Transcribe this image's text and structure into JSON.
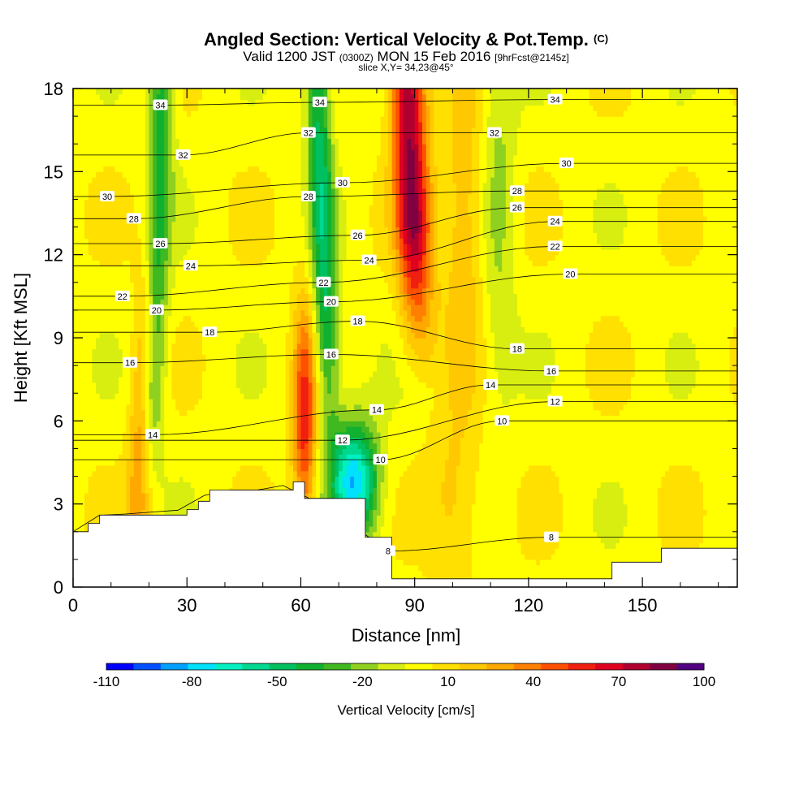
{
  "header": {
    "title_main": "Angled Section: Vertical Velocity & Pot.Temp.",
    "title_unit": "(C)",
    "valid_prefix": "Valid 1200 JST",
    "valid_utc": "(0300Z)",
    "valid_date": "MON 15 Feb 2016",
    "valid_fcst": "[9hrFcst@2145z]",
    "slice": "slice X,Y= 34,23@45°"
  },
  "chart_data": {
    "type": "heatmap",
    "xlabel": "Distance [nm]",
    "ylabel": "Height [Kft MSL]",
    "xlim": [
      0,
      175
    ],
    "ylim": [
      0,
      18
    ],
    "x_ticks": [
      0,
      30,
      60,
      90,
      120,
      150
    ],
    "y_ticks": [
      0,
      3,
      6,
      9,
      12,
      15,
      18
    ],
    "colorbar": {
      "label": "Vertical Velocity [cm/s]",
      "tick_labels": [
        "-110",
        "-80",
        "-50",
        "-20",
        "10",
        "40",
        "70",
        "100"
      ],
      "levels": [
        -110,
        -100,
        -90,
        -80,
        -70,
        -60,
        -50,
        -40,
        -30,
        -20,
        -10,
        0,
        10,
        20,
        30,
        40,
        50,
        60,
        70,
        80,
        90,
        100
      ],
      "colors": [
        "#0000ff",
        "#0050ff",
        "#00a0ff",
        "#00e0ff",
        "#00f0c0",
        "#00d890",
        "#00c060",
        "#10b030",
        "#40b820",
        "#90d020",
        "#d8ee10",
        "#ffff00",
        "#ffe000",
        "#ffc800",
        "#ffa800",
        "#ff8000",
        "#ff5000",
        "#f02010",
        "#e00020",
        "#b00030",
        "#800040",
        "#500080"
      ]
    },
    "vertical_velocity_features": [
      {
        "kind": "downdraft band",
        "x_center": 22,
        "min_cm_s": -45
      },
      {
        "kind": "updraft band",
        "x_center": 19,
        "max_cm_s": 40
      },
      {
        "kind": "downdraft band",
        "x_center": 66,
        "min_cm_s": -50
      },
      {
        "kind": "updraft band",
        "x_center": 61,
        "max_cm_s": 60
      },
      {
        "kind": "updraft band",
        "x_center": 90,
        "max_cm_s": 85
      },
      {
        "kind": "downdraft core",
        "x_center": 74,
        "min_cm_s": -85
      },
      {
        "kind": "downdraft band",
        "x_center": 112,
        "min_cm_s": -20
      }
    ],
    "terrain_profile": {
      "x": [
        0,
        4,
        7,
        10,
        30,
        33,
        36,
        52,
        58,
        61,
        70,
        77,
        84,
        88,
        129,
        142,
        155,
        175
      ],
      "height": [
        2.0,
        2.3,
        2.6,
        2.6,
        2.8,
        3.1,
        3.5,
        3.5,
        3.8,
        3.2,
        3.2,
        1.8,
        0.3,
        0.3,
        0.3,
        0.9,
        1.4,
        1.6
      ]
    },
    "potential_temperature_contours": [
      {
        "value": 8,
        "label_x": [
          83,
          126
        ],
        "label_y": [
          1.3,
          1.8
        ]
      },
      {
        "value": 10,
        "label_x": [
          81,
          113
        ],
        "label_y": [
          4.6,
          6.0
        ]
      },
      {
        "value": 12,
        "label_x": [
          71,
          127
        ],
        "label_y": [
          5.3,
          6.7
        ]
      },
      {
        "value": 14,
        "label_x": [
          21,
          80,
          110
        ],
        "label_y": [
          5.5,
          6.4,
          7.3
        ]
      },
      {
        "value": 16,
        "label_x": [
          15,
          68,
          126
        ],
        "label_y": [
          8.1,
          8.4,
          7.8
        ]
      },
      {
        "value": 18,
        "label_x": [
          36,
          75,
          117
        ],
        "label_y": [
          9.2,
          9.6,
          8.6
        ]
      },
      {
        "value": 20,
        "label_x": [
          22,
          68,
          131
        ],
        "label_y": [
          10.0,
          10.3,
          11.3
        ]
      },
      {
        "value": 22,
        "label_x": [
          13,
          66,
          127
        ],
        "label_y": [
          10.5,
          11.0,
          12.3
        ]
      },
      {
        "value": 24,
        "label_x": [
          31,
          78,
          127
        ],
        "label_y": [
          11.6,
          11.8,
          13.2
        ]
      },
      {
        "value": 26,
        "label_x": [
          23,
          75,
          117
        ],
        "label_y": [
          12.4,
          12.7,
          13.7
        ]
      },
      {
        "value": 28,
        "label_x": [
          16,
          62,
          117
        ],
        "label_y": [
          13.3,
          14.1,
          14.3
        ]
      },
      {
        "value": 30,
        "label_x": [
          9,
          71,
          130
        ],
        "label_y": [
          14.1,
          14.6,
          15.3
        ]
      },
      {
        "value": 32,
        "label_x": [
          29,
          62,
          111
        ],
        "label_y": [
          15.6,
          16.4,
          16.4
        ]
      },
      {
        "value": 34,
        "label_x": [
          23,
          65,
          127
        ],
        "label_y": [
          17.4,
          17.5,
          17.6
        ]
      }
    ]
  }
}
